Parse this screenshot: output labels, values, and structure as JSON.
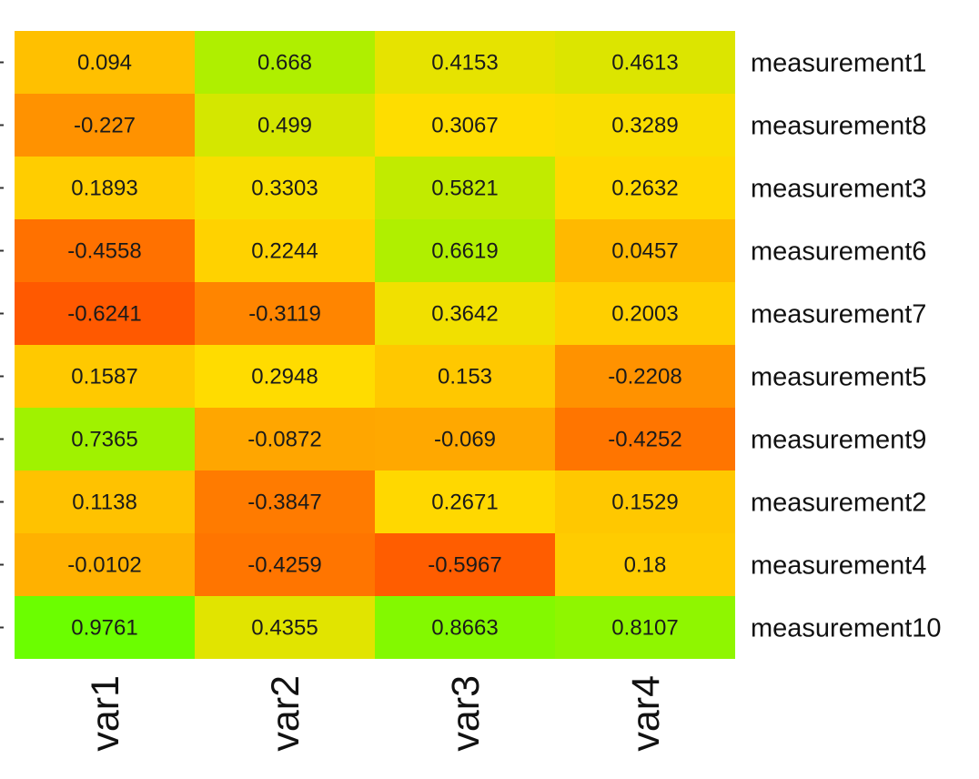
{
  "chart_data": {
    "type": "heatmap",
    "rows": [
      "measurement1",
      "measurement8",
      "measurement3",
      "measurement6",
      "measurement7",
      "measurement5",
      "measurement9",
      "measurement2",
      "measurement4",
      "measurement10"
    ],
    "columns": [
      "var1",
      "var2",
      "var3",
      "var4"
    ],
    "values": [
      [
        "0.094",
        "0.668",
        "0.4153",
        "0.4613"
      ],
      [
        "-0.227",
        "0.499",
        "0.3067",
        "0.3289"
      ],
      [
        "0.1893",
        "0.3303",
        "0.5821",
        "0.2632"
      ],
      [
        "-0.4558",
        "0.2244",
        "0.6619",
        "0.0457"
      ],
      [
        "-0.6241",
        "-0.3119",
        "0.3642",
        "0.2003"
      ],
      [
        "0.1587",
        "0.2948",
        "0.153",
        "-0.2208"
      ],
      [
        "0.7365",
        "-0.0872",
        "-0.069",
        "-0.4252"
      ],
      [
        "0.1138",
        "-0.3847",
        "0.2671",
        "0.1529"
      ],
      [
        "-0.0102",
        "-0.4259",
        "-0.5967",
        "0.18"
      ],
      [
        "0.9761",
        "0.4355",
        "0.8663",
        "0.8107"
      ]
    ],
    "color_scale": {
      "low": "#ff5500",
      "mid": "#ffdd00",
      "high": "#66ff00",
      "domain": [
        -0.65,
        0.3,
        1.0
      ]
    },
    "title": "",
    "xlabel": "",
    "ylabel": "",
    "legend": "none"
  }
}
